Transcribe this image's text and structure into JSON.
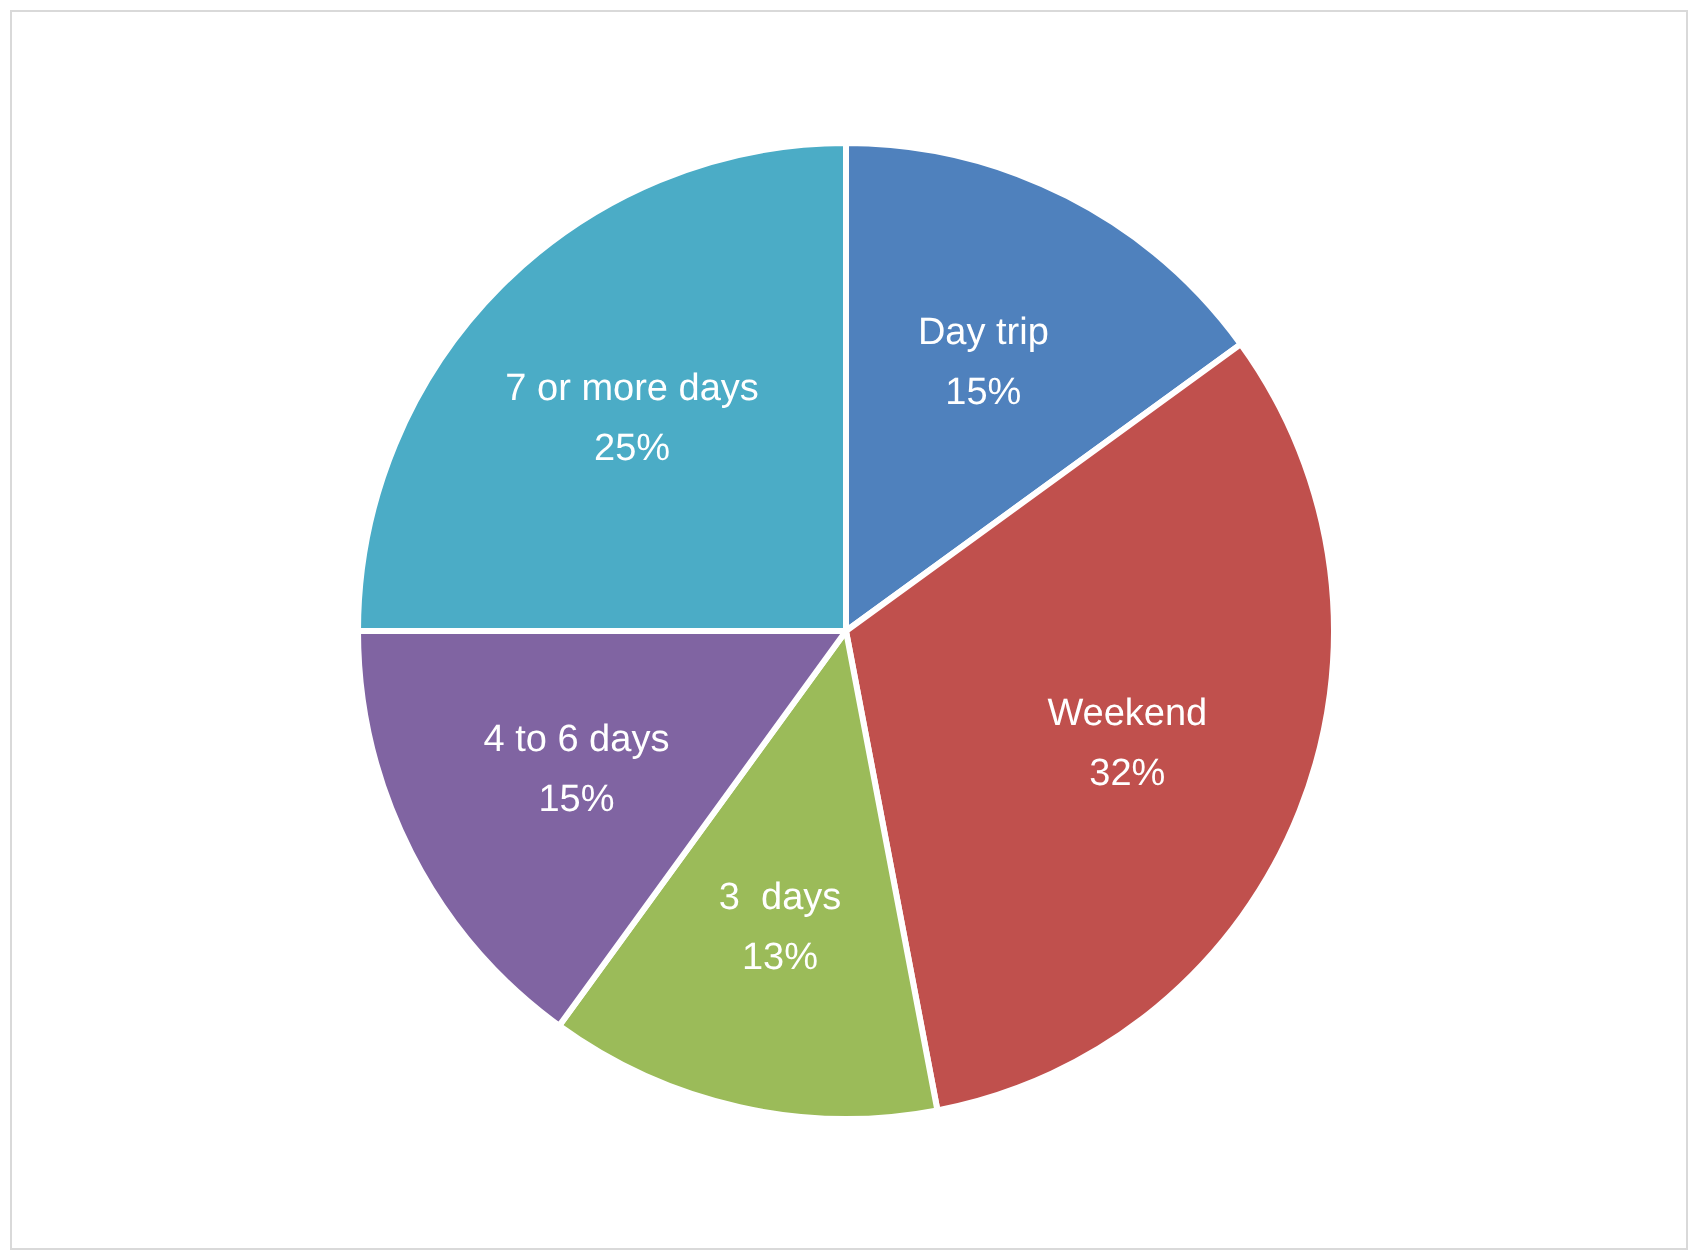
{
  "chart_data": {
    "type": "pie",
    "categories": [
      "Day trip",
      "Weekend",
      "3  days",
      "4 to 6 days",
      "7 or more days"
    ],
    "values": [
      15,
      32,
      13,
      15,
      25
    ],
    "value_labels": [
      "15%",
      "32%",
      "13%",
      "15%",
      "25%"
    ],
    "colors": [
      "#4f81bd",
      "#c0504d",
      "#9bbb59",
      "#8064a2",
      "#4bacc6"
    ],
    "legend": false
  }
}
